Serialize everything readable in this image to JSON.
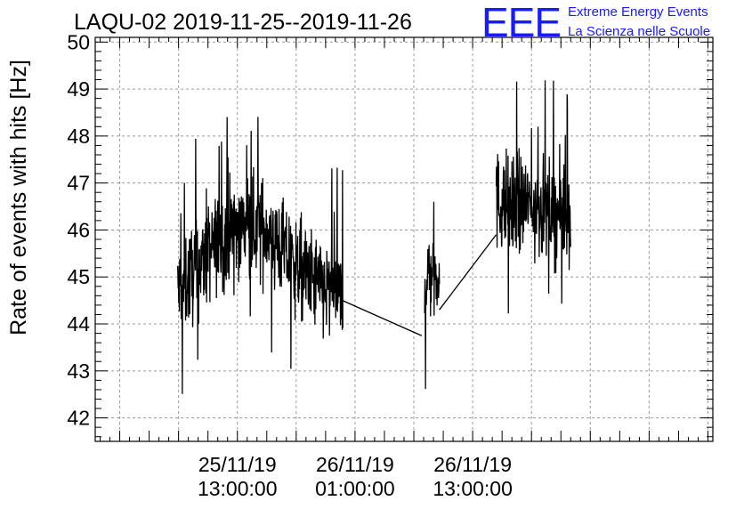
{
  "chart_data": {
    "type": "line",
    "title": "LAQU-02 2019-11-25--2019-11-26",
    "xlabel": "",
    "ylabel": "Rate of events with hits [Hz]",
    "ylim": [
      41.5,
      50.1
    ],
    "xlim_hours": [
      -14.5,
      48.5
    ],
    "grid": true,
    "x_tick_labels": [
      {
        "hours": 0,
        "date": "25/11/19",
        "time": "13:00:00"
      },
      {
        "hours": 12,
        "date": "26/11/19",
        "time": "01:00:00"
      },
      {
        "hours": 24,
        "date": "26/11/19",
        "time": "13:00:00"
      }
    ],
    "y_ticks": [
      42,
      43,
      44,
      45,
      46,
      47,
      48,
      49,
      50
    ],
    "series": [
      {
        "segments": [
          {
            "x_start": -6.1,
            "x_end": 10.7,
            "trend": [
              [
                -6.1,
                44.7
              ],
              [
                -3.0,
                45.5
              ],
              [
                0.0,
                46.1
              ],
              [
                3.0,
                46.0
              ],
              [
                6.0,
                45.2
              ],
              [
                9.0,
                44.7
              ],
              [
                10.7,
                44.5
              ]
            ],
            "noise": 0.95,
            "spike_max": 49.15,
            "spike_min": 42.3
          },
          {
            "x_start": 19.1,
            "x_end": 20.6,
            "trend": [
              [
                19.1,
                45.0
              ],
              [
                20.6,
                45.2
              ]
            ],
            "noise": 0.9,
            "spike_max": 46.6,
            "spike_min": 42.4
          },
          {
            "x_start": 26.4,
            "x_end": 34.0,
            "trend": [
              [
                26.4,
                46.6
              ],
              [
                30.0,
                46.5
              ],
              [
                34.0,
                46.3
              ]
            ],
            "noise": 0.95,
            "spike_max": 49.3,
            "spike_min": 44.1
          }
        ],
        "connectors": [
          {
            "from": [
              10.7,
              44.5
            ],
            "to": [
              18.8,
              43.75
            ]
          },
          {
            "from": [
              20.6,
              44.3
            ],
            "to": [
              26.4,
              45.9
            ]
          }
        ]
      }
    ]
  },
  "logo": {
    "mark": "EEE",
    "line1": "Extreme Energy Events",
    "line2": "La Scienza nelle Scuole"
  },
  "colors": {
    "logo": "#1a1aff",
    "series": "#000000",
    "grid": "#9a9a9a"
  }
}
